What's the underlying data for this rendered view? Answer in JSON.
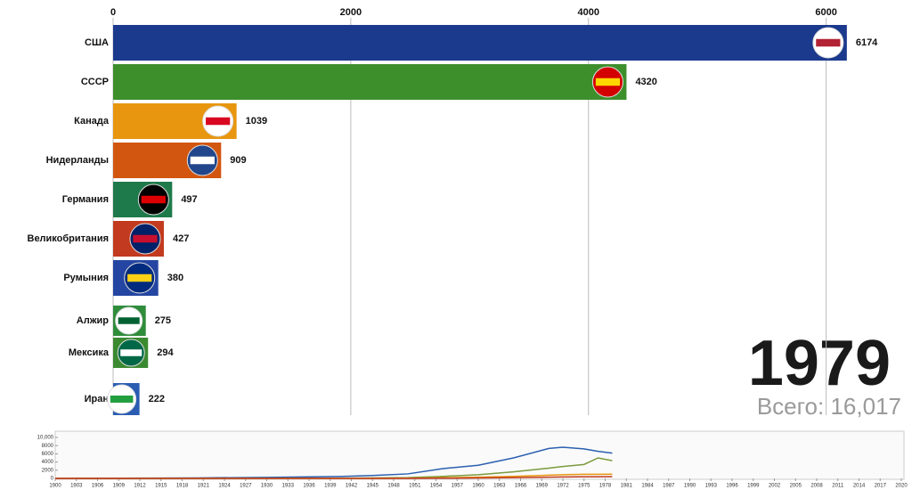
{
  "chart_data": [
    {
      "type": "bar",
      "orientation": "horizontal",
      "categories": [
        "США",
        "СССР",
        "Канада",
        "Нидерланды",
        "Германия",
        "Великобритания",
        "Румыния",
        "Алжир",
        "Мексика",
        "Иран"
      ],
      "values": [
        6174,
        4320,
        1039,
        909,
        497,
        427,
        380,
        275,
        294,
        222
      ],
      "colors": [
        "#1b3a8e",
        "#3d8f2c",
        "#e8960f",
        "#d2560f",
        "#1f7a4b",
        "#c23a1f",
        "#2446a2",
        "#2f8c3b",
        "#3b8a31",
        "#2a5db2"
      ],
      "xlim": [
        0,
        6400
      ],
      "xticks": [
        0,
        2000,
        4000,
        6000
      ],
      "grid": true,
      "year_label": "1979",
      "total_label": "Всего: 16,017"
    },
    {
      "type": "line",
      "x": [
        1900,
        1910,
        1920,
        1930,
        1940,
        1945,
        1950,
        1955,
        1960,
        1965,
        1970,
        1972,
        1975,
        1977,
        1979
      ],
      "series": [
        {
          "color": "#2b5fb0",
          "values": [
            0,
            50,
            120,
            250,
            450,
            700,
            1100,
            2400,
            3200,
            5000,
            7300,
            7600,
            7200,
            6600,
            6174
          ]
        },
        {
          "color": "#7a9a3c",
          "values": [
            0,
            0,
            0,
            0,
            50,
            100,
            200,
            500,
            900,
            1600,
            2500,
            2900,
            3400,
            5000,
            4320
          ]
        },
        {
          "color": "#e8960f",
          "values": [
            0,
            0,
            0,
            0,
            0,
            0,
            50,
            150,
            300,
            500,
            800,
            900,
            1000,
            1000,
            1039
          ]
        },
        {
          "color": "#c23a1f",
          "values": [
            0,
            0,
            0,
            0,
            0,
            0,
            0,
            50,
            100,
            200,
            300,
            350,
            400,
            420,
            427
          ]
        }
      ],
      "xlim": [
        1900,
        2020
      ],
      "xticks": [
        1900,
        1903,
        1906,
        1909,
        1912,
        1915,
        1918,
        1921,
        1924,
        1927,
        1930,
        1933,
        1936,
        1939,
        1942,
        1945,
        1948,
        1951,
        1954,
        1957,
        1960,
        1963,
        1966,
        1969,
        1972,
        1975,
        1978,
        1981,
        1984,
        1987,
        1990,
        1993,
        1996,
        1999,
        2002,
        2005,
        2008,
        2011,
        2014,
        2017,
        2020
      ],
      "ylim": [
        0,
        10000
      ],
      "yticks": [
        0,
        2000,
        4000,
        6000,
        8000,
        {
          "value": 10000,
          "label": "10,000"
        }
      ]
    }
  ]
}
